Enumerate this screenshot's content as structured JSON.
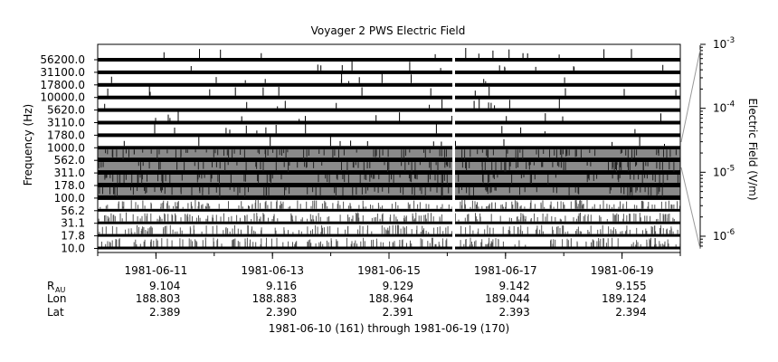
{
  "chart_data": {
    "type": "heatmap",
    "title": "Voyager 2 PWS Electric Field",
    "ylabel": "Frequency (Hz)",
    "channels": [
      "56200.0",
      "31100.0",
      "17800.0",
      "10000.0",
      "5620.0",
      "3110.0",
      "1780.0",
      "1000.0",
      "562.0",
      "311.0",
      "178.0",
      "100.0",
      "56.2",
      "31.1",
      "17.8",
      "10.0"
    ],
    "x_ticks": [
      "1981-06-11",
      "1981-06-13",
      "1981-06-15",
      "1981-06-17",
      "1981-06-19"
    ],
    "x_range": [
      "1981-06-10",
      "1981-06-20"
    ],
    "ephemeris": {
      "rows": [
        {
          "label": "R",
          "sub": "AU",
          "values": [
            "9.104",
            "9.116",
            "9.129",
            "9.142",
            "9.155"
          ]
        },
        {
          "label": "Lon",
          "sub": "",
          "values": [
            "188.803",
            "188.883",
            "188.964",
            "189.044",
            "189.124"
          ]
        },
        {
          "label": "Lat",
          "sub": "",
          "values": [
            "2.389",
            "2.390",
            "2.391",
            "2.393",
            "2.394"
          ]
        }
      ]
    },
    "xlabel": "1981-06-10 (161) through 1981-06-19 (170)",
    "colorbar": {
      "label": "Electric Field (V/m)",
      "scale": "log",
      "ticks": [
        {
          "base": "10",
          "exp": "-3"
        },
        {
          "base": "10",
          "exp": "-4"
        },
        {
          "base": "10",
          "exp": "-5"
        },
        {
          "base": "10",
          "exp": "-6"
        }
      ]
    },
    "grid": false
  }
}
